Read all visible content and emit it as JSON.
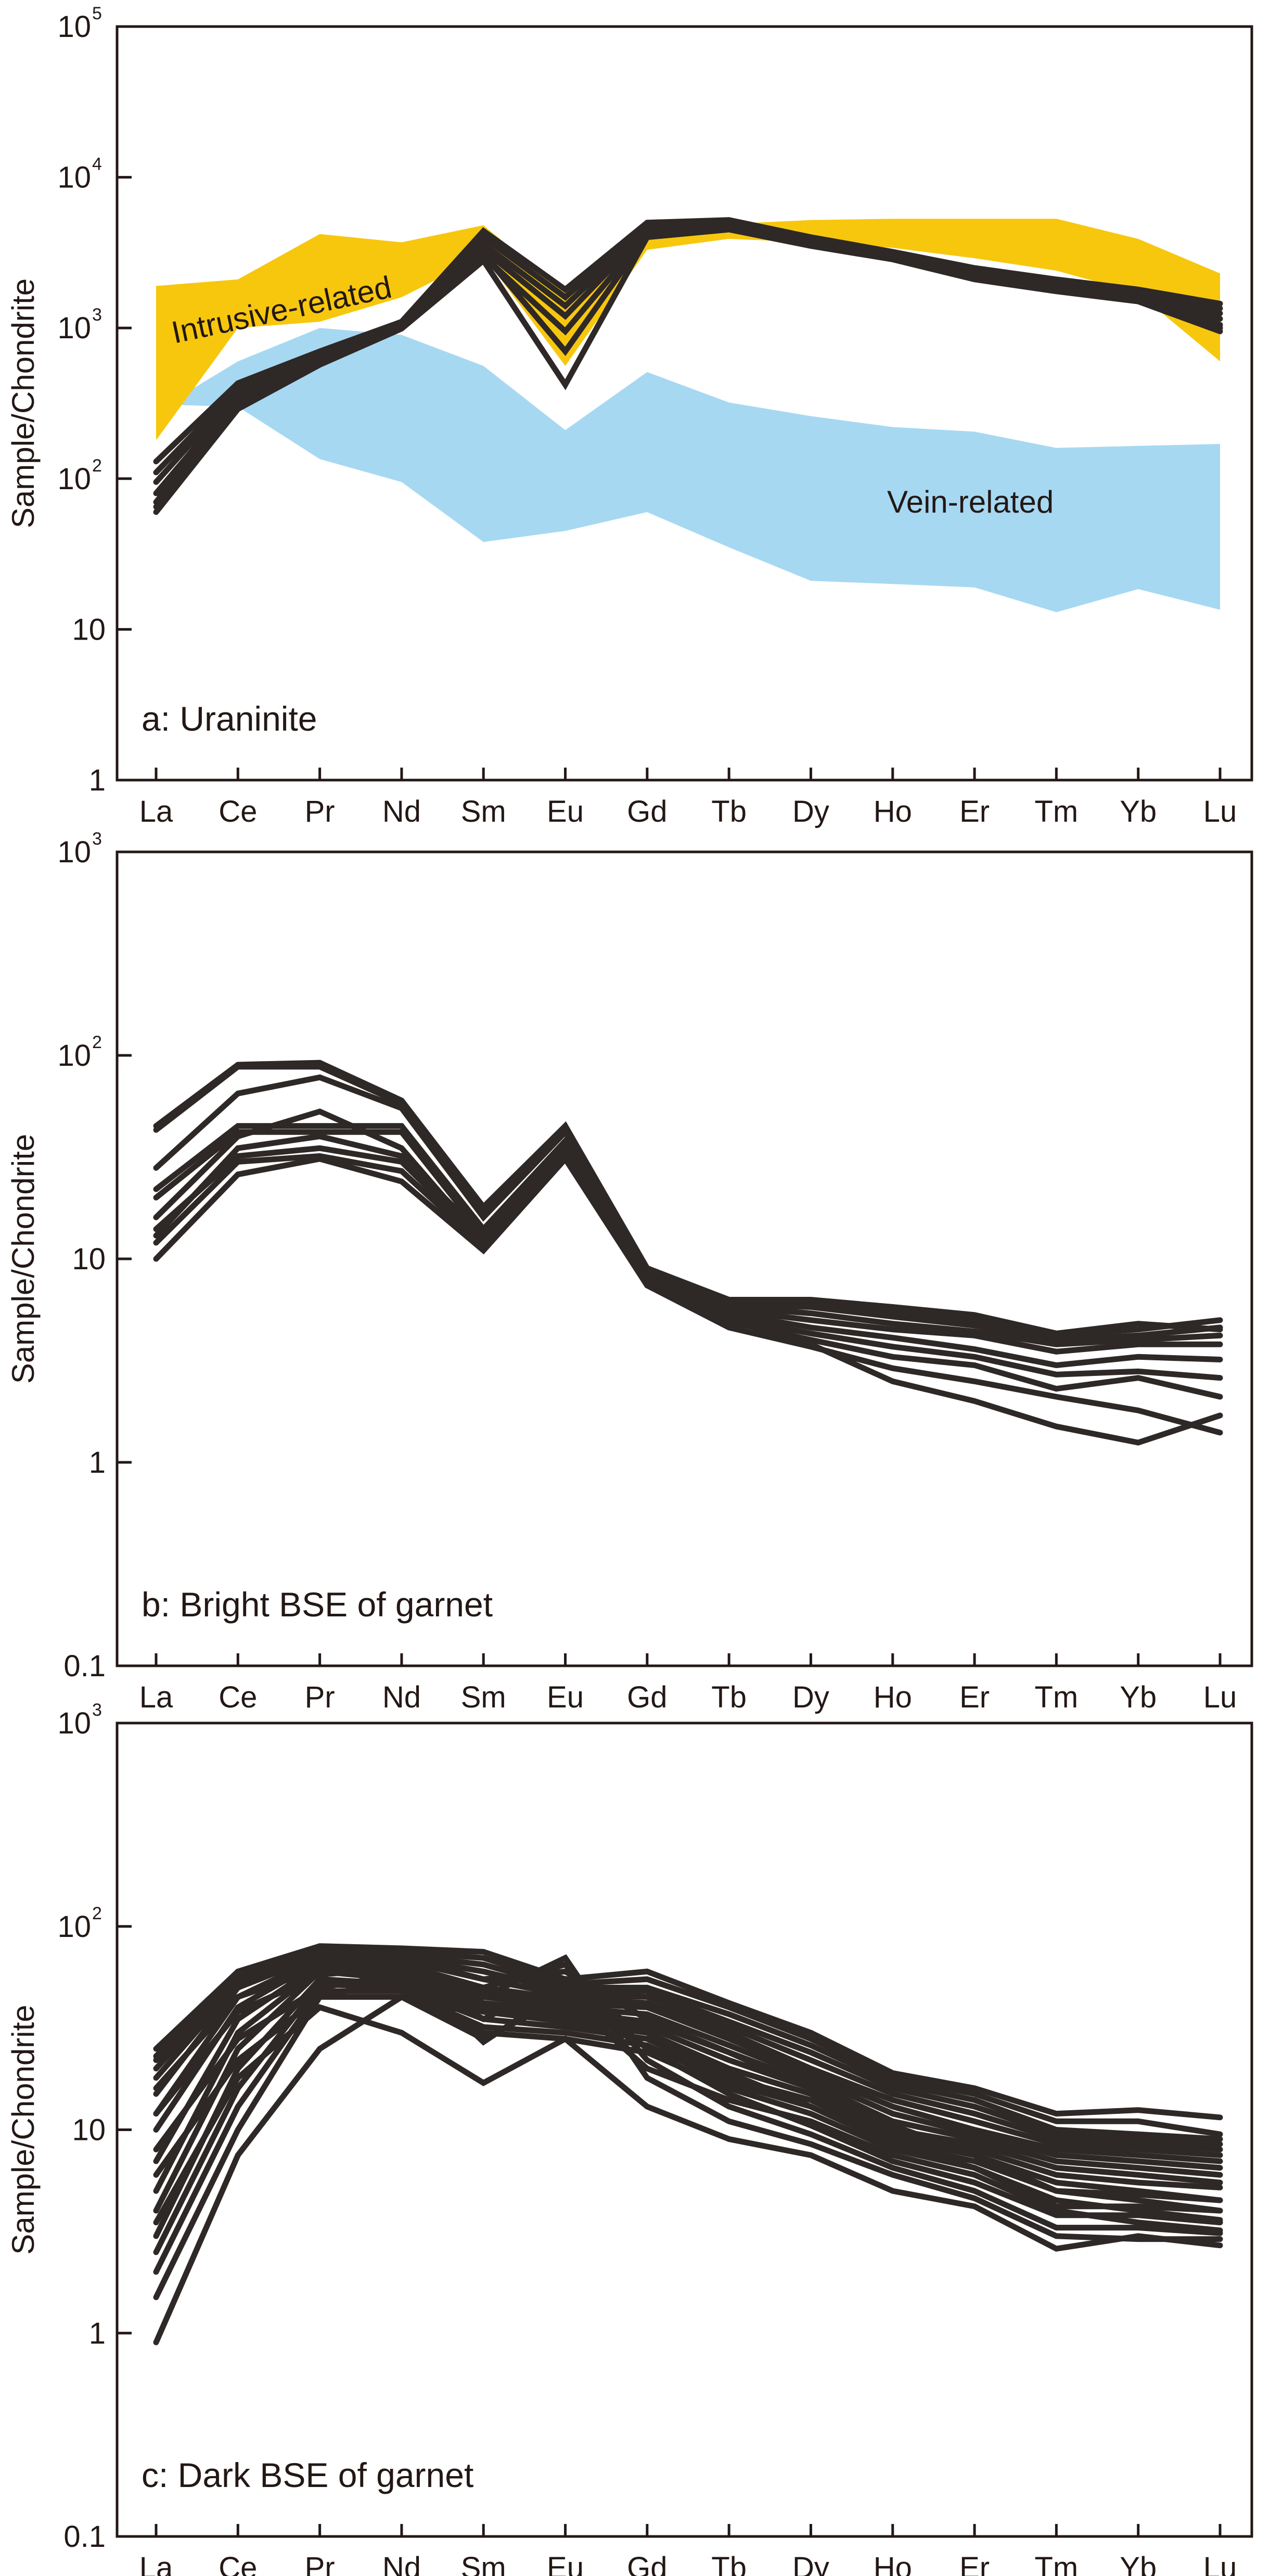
{
  "colors": {
    "intrusive_band": "#F7C70E",
    "vein_band": "#A6D8F2",
    "line": "#2E2827",
    "axis": "#231815"
  },
  "chart_data": [
    {
      "type": "line",
      "title": "a: Uraninite",
      "ylabel": "Sample/Chondrite",
      "yscale": "log",
      "ylim": [
        1,
        100000
      ],
      "yticks": [
        {
          "value": 1,
          "base": "1",
          "exp": ""
        },
        {
          "value": 10,
          "base": "10",
          "exp": ""
        },
        {
          "value": 100,
          "base": "10",
          "exp": "2"
        },
        {
          "value": 1000,
          "base": "10",
          "exp": "3"
        },
        {
          "value": 10000,
          "base": "10",
          "exp": "4"
        },
        {
          "value": 100000,
          "base": "10",
          "exp": "5"
        }
      ],
      "categories": [
        "La",
        "Ce",
        "Pr",
        "Nd",
        "Sm",
        "Eu",
        "Gd",
        "Tb",
        "Dy",
        "Ho",
        "Er",
        "Tm",
        "Yb",
        "Lu"
      ],
      "bands": [
        {
          "name": "Vein-related",
          "color": "#A6D8F2",
          "upper": [
            null,
            600,
            1000,
            900,
            560,
            210,
            510,
            320,
            260,
            220,
            205,
            160,
            165,
            170
          ],
          "lower": [
            null,
            300,
            135,
            95,
            38,
            45,
            60,
            35,
            21,
            20,
            19,
            13,
            18.5,
            13.5
          ],
          "start": 310
        },
        {
          "name": "Intrusive-related",
          "color": "#F7C70E",
          "upper": [
            1900,
            2100,
            4200,
            3700,
            4800,
            1700,
            5100,
            4900,
            5200,
            5300,
            5300,
            5300,
            3900,
            2300
          ],
          "lower": [
            180,
            1000,
            1100,
            1600,
            3000,
            560,
            3300,
            3900,
            3700,
            3400,
            2900,
            2400,
            1700,
            600
          ]
        }
      ],
      "series": [
        {
          "values": [
            130,
            430,
            700,
            1100,
            4400,
            1800,
            5000,
            5200,
            4000,
            3200,
            2500,
            2100,
            1800,
            1450
          ]
        },
        {
          "values": [
            110,
            400,
            680,
            1080,
            4000,
            1600,
            4800,
            5000,
            3900,
            3100,
            2400,
            2000,
            1700,
            1350
          ]
        },
        {
          "values": [
            95,
            380,
            650,
            1050,
            3600,
            1400,
            4600,
            4800,
            3800,
            3000,
            2300,
            1900,
            1650,
            1250
          ]
        },
        {
          "values": [
            80,
            350,
            620,
            1030,
            3300,
            1200,
            4400,
            4700,
            3700,
            2950,
            2250,
            1850,
            1600,
            1150
          ]
        },
        {
          "values": [
            70,
            320,
            600,
            1010,
            3000,
            950,
            4200,
            4600,
            3600,
            2900,
            2200,
            1800,
            1550,
            1050
          ]
        },
        {
          "values": [
            60,
            290,
            570,
            990,
            2800,
            420,
            4000,
            4500,
            3500,
            2850,
            2100,
            1750,
            1500,
            950
          ]
        },
        {
          "values": [
            65,
            300,
            580,
            1000,
            3100,
            700,
            4100,
            4550,
            3550,
            2870,
            2150,
            1780,
            1520,
            1000
          ]
        }
      ]
    },
    {
      "type": "line",
      "title": "b: Bright BSE of garnet",
      "ylabel": "Sample/Chondrite",
      "yscale": "log",
      "ylim": [
        0.1,
        1000
      ],
      "yticks": [
        {
          "value": 0.1,
          "base": "0.1",
          "exp": ""
        },
        {
          "value": 1,
          "base": "1",
          "exp": ""
        },
        {
          "value": 10,
          "base": "10",
          "exp": ""
        },
        {
          "value": 100,
          "base": "10",
          "exp": "2"
        },
        {
          "value": 1000,
          "base": "10",
          "exp": "3"
        }
      ],
      "categories": [
        "La",
        "Ce",
        "Pr",
        "Nd",
        "Sm",
        "Eu",
        "Gd",
        "Tb",
        "Dy",
        "Ho",
        "Er",
        "Tm",
        "Yb",
        "Lu"
      ],
      "series": [
        {
          "values": [
            45,
            90,
            92,
            60,
            18,
            45,
            9,
            6.3,
            6.3,
            5.8,
            5.3,
            4.3,
            4.8,
            4.5
          ]
        },
        {
          "values": [
            43,
            88,
            88,
            58,
            17,
            43,
            8.8,
            6.1,
            6.0,
            5.5,
            5.0,
            4.2,
            4.5,
            5.0
          ]
        },
        {
          "values": [
            28,
            65,
            78,
            55,
            16,
            42,
            8.5,
            6.0,
            5.8,
            5.2,
            4.7,
            4.0,
            4.2,
            4.6
          ]
        },
        {
          "values": [
            22,
            45,
            45,
            45,
            14,
            38,
            8.2,
            5.8,
            5.4,
            4.8,
            4.4,
            3.8,
            4.0,
            4.2
          ]
        },
        {
          "values": [
            20,
            42,
            42,
            42,
            13,
            36,
            8.0,
            5.6,
            5.0,
            4.5,
            4.2,
            3.5,
            3.8,
            3.8
          ]
        },
        {
          "values": [
            16,
            40,
            53,
            35,
            12,
            34,
            7.8,
            5.4,
            4.6,
            4.1,
            3.6,
            3.0,
            3.3,
            3.2
          ]
        },
        {
          "values": [
            14,
            32,
            35,
            30,
            12,
            33,
            7.6,
            5.1,
            4.3,
            3.7,
            3.3,
            2.7,
            2.8,
            2.6
          ]
        },
        {
          "values": [
            12,
            30,
            32,
            27,
            11.5,
            32,
            7.5,
            4.9,
            4.0,
            3.3,
            3.0,
            2.3,
            2.6,
            2.1
          ]
        },
        {
          "values": [
            10,
            26,
            31,
            24,
            11,
            31,
            7.4,
            4.6,
            3.7,
            2.9,
            2.5,
            2.1,
            1.8,
            1.4
          ]
        },
        {
          "values": [
            13,
            35,
            40,
            32,
            13,
            35,
            7.7,
            5.0,
            3.8,
            2.5,
            2.0,
            1.5,
            1.25,
            1.7
          ]
        }
      ]
    },
    {
      "type": "line",
      "title": "c: Dark BSE of garnet",
      "ylabel": "Sample/Chondrite",
      "yscale": "log",
      "ylim": [
        0.1,
        1000
      ],
      "yticks": [
        {
          "value": 0.1,
          "base": "0.1",
          "exp": ""
        },
        {
          "value": 1,
          "base": "1",
          "exp": ""
        },
        {
          "value": 10,
          "base": "10",
          "exp": ""
        },
        {
          "value": 100,
          "base": "10",
          "exp": "2"
        },
        {
          "value": 1000,
          "base": "10",
          "exp": "3"
        }
      ],
      "categories": [
        "La",
        "Ce",
        "Pr",
        "Nd",
        "Sm",
        "Eu",
        "Gd",
        "Tb",
        "Dy",
        "Ho",
        "Er",
        "Tm",
        "Yb",
        "Lu"
      ],
      "series": [
        {
          "values": [
            25,
            60,
            80,
            78,
            75,
            55,
            60,
            42,
            30,
            19,
            16,
            12,
            12.5,
            11.5
          ]
        },
        {
          "values": [
            23,
            58,
            78,
            75,
            70,
            52,
            55,
            40,
            28,
            18,
            15,
            11,
            11,
            9.5
          ]
        },
        {
          "values": [
            20,
            55,
            76,
            72,
            65,
            50,
            50,
            37,
            26,
            17,
            14,
            10,
            9.5,
            9.0
          ]
        },
        {
          "values": [
            18,
            52,
            74,
            70,
            60,
            48,
            48,
            34,
            24,
            16,
            13,
            9.5,
            9.0,
            8.5
          ]
        },
        {
          "values": [
            15,
            50,
            72,
            68,
            55,
            46,
            45,
            32,
            22,
            15,
            12,
            9.0,
            8.5,
            8.0
          ]
        },
        {
          "values": [
            12,
            45,
            70,
            65,
            50,
            44,
            42,
            30,
            20,
            14,
            11,
            8.5,
            8.0,
            7.5
          ]
        },
        {
          "values": [
            10,
            40,
            68,
            62,
            48,
            42,
            40,
            28,
            19,
            13,
            10,
            8.0,
            7.5,
            7.0
          ]
        },
        {
          "values": [
            7,
            35,
            65,
            60,
            45,
            40,
            37,
            26,
            18,
            12,
            9.5,
            7.5,
            7.0,
            6.5
          ]
        },
        {
          "values": [
            5,
            30,
            62,
            58,
            42,
            38,
            34,
            24,
            17,
            11,
            9.0,
            7.0,
            6.5,
            6.0
          ]
        },
        {
          "values": [
            4,
            25,
            60,
            55,
            40,
            36,
            32,
            22,
            16,
            10,
            8.5,
            6.5,
            6.0,
            5.5
          ]
        },
        {
          "values": [
            3,
            20,
            55,
            52,
            38,
            34,
            30,
            20,
            15,
            9.5,
            8.0,
            6.0,
            5.5,
            5.2
          ]
        },
        {
          "values": [
            2.5,
            16,
            52,
            50,
            35,
            32,
            28,
            18,
            14,
            9.0,
            7.5,
            5.5,
            5.0,
            4.5
          ]
        },
        {
          "values": [
            2,
            13,
            48,
            48,
            32,
            30,
            26,
            17,
            13,
            8.5,
            7.0,
            5.0,
            4.5,
            4.0
          ]
        },
        {
          "values": [
            1.5,
            10,
            45,
            45,
            30,
            28,
            24,
            16,
            12,
            8.0,
            6.5,
            4.5,
            4.0,
            3.6
          ]
        },
        {
          "values": [
            0.9,
            7.5,
            25,
            45,
            28,
            45,
            20,
            14,
            11,
            7.5,
            6.0,
            4.0,
            3.5,
            3.2
          ]
        },
        {
          "values": [
            3.5,
            18,
            40,
            30,
            17,
            28,
            13,
            9,
            7.5,
            5.0,
            4.2,
            2.6,
            3.0,
            2.7
          ]
        },
        {
          "values": [
            6,
            22,
            45,
            55,
            45,
            70,
            18,
            11,
            8.5,
            6.0,
            4.6,
            3.0,
            2.9,
            2.9
          ]
        },
        {
          "values": [
            8,
            28,
            50,
            58,
            50,
            65,
            22,
            13,
            9.5,
            6.5,
            5.0,
            3.3,
            3.3,
            3.1
          ]
        },
        {
          "values": [
            12,
            38,
            58,
            62,
            35,
            55,
            25,
            15,
            10.5,
            7.0,
            5.5,
            3.8,
            3.8,
            3.5
          ]
        },
        {
          "values": [
            16,
            45,
            62,
            65,
            27,
            50,
            30,
            19,
            13,
            8.5,
            6.5,
            4.2,
            4.2,
            4.0
          ]
        },
        {
          "values": [
            22,
            55,
            70,
            70,
            55,
            60,
            35,
            24,
            16,
            10.5,
            7.5,
            5.0,
            4.8,
            4.5
          ]
        }
      ]
    }
  ]
}
